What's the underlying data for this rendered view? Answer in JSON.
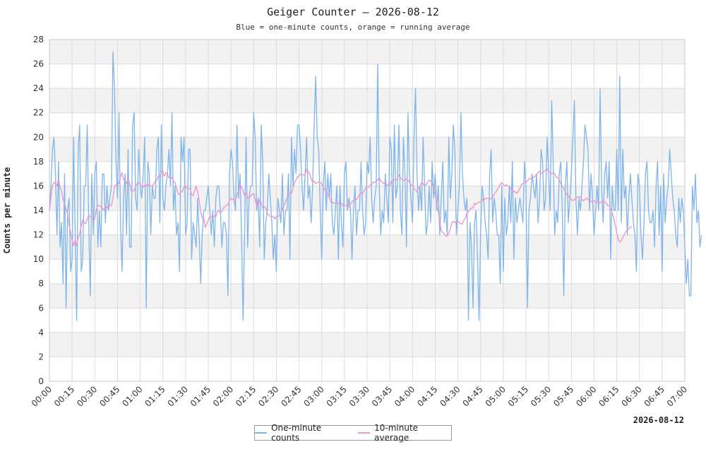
{
  "chart_data": {
    "type": "line",
    "title": "Geiger Counter – 2026-08-12",
    "subtitle": "Blue = one-minute counts, orange = running average",
    "ylabel": "Counts per minute",
    "xlabel_date": "2026-08-12",
    "ylim": [
      0,
      28
    ],
    "yticks": [
      0,
      2,
      4,
      6,
      8,
      10,
      12,
      14,
      16,
      18,
      20,
      22,
      24,
      26,
      28
    ],
    "x_range_minutes": [
      0,
      420
    ],
    "x_ticks": [
      "00:00",
      "00:15",
      "00:30",
      "00:45",
      "01:00",
      "01:15",
      "01:30",
      "01:45",
      "02:00",
      "02:15",
      "02:30",
      "02:45",
      "03:00",
      "03:15",
      "03:30",
      "03:45",
      "04:00",
      "04:15",
      "04:30",
      "04:45",
      "05:00",
      "05:15",
      "05:30",
      "05:45",
      "06:00",
      "06:15",
      "06:30",
      "06:45",
      "07:00"
    ],
    "grid": true,
    "legend_position": "bottom-center",
    "series": [
      {
        "name": "One-minute counts",
        "color": "#7fb4ea",
        "x_start": "00:00",
        "x_step_minutes": 1,
        "values": [
          14,
          16,
          19,
          20,
          17,
          12,
          18,
          11,
          13,
          8,
          17,
          6,
          14,
          15,
          9,
          10,
          20,
          12,
          5,
          19,
          21,
          9,
          10,
          16,
          16,
          21,
          13,
          7,
          17,
          12,
          17,
          18,
          11,
          14,
          11,
          17,
          17,
          13,
          16,
          14,
          15,
          16,
          27,
          24,
          18,
          15,
          22,
          13,
          9,
          15,
          17,
          12,
          19,
          11,
          11,
          21,
          22,
          15,
          14,
          19,
          16,
          15,
          17,
          20,
          6,
          18,
          17,
          12,
          16,
          15,
          15,
          19,
          20,
          13,
          21,
          15,
          14,
          16,
          17,
          19,
          16,
          22,
          14,
          16,
          12,
          13,
          9,
          20,
          18,
          20,
          12,
          13,
          19,
          19,
          10,
          13,
          12,
          11,
          15,
          12,
          8,
          12,
          14,
          14,
          15,
          16,
          14,
          12,
          14,
          11,
          15,
          16,
          16,
          14,
          11,
          13,
          13,
          12,
          7,
          17,
          19,
          18,
          15,
          14,
          21,
          15,
          17,
          12,
          5,
          12,
          20,
          11,
          15,
          16,
          16,
          22,
          20,
          14,
          15,
          11,
          21,
          18,
          10,
          13,
          14,
          17,
          15,
          13,
          10,
          12,
          9,
          15,
          14,
          13,
          17,
          12,
          14,
          14,
          17,
          10,
          20,
          16,
          19,
          17,
          21,
          21,
          19,
          16,
          14,
          17,
          20,
          15,
          16,
          13,
          16,
          21,
          25,
          20,
          19,
          14,
          10,
          16,
          18,
          14,
          17,
          15,
          17,
          13,
          12,
          14,
          16,
          10,
          16,
          13,
          11,
          17,
          18,
          14,
          15,
          14,
          10,
          14,
          16,
          12,
          14,
          14,
          18,
          14,
          12,
          13,
          18,
          17,
          20,
          15,
          13,
          15,
          16,
          26,
          16,
          12,
          14,
          13,
          17,
          15,
          13,
          20,
          19,
          13,
          21,
          15,
          16,
          21,
          14,
          12,
          20,
          17,
          11,
          22,
          17,
          15,
          13,
          20,
          24,
          17,
          14,
          16,
          14,
          20,
          16,
          12,
          13,
          16,
          13,
          18,
          15,
          17,
          14,
          16,
          12,
          15,
          18,
          13,
          14,
          12,
          20,
          15,
          17,
          21,
          19,
          12,
          14,
          16,
          22,
          17,
          15,
          14,
          15,
          5,
          13,
          11,
          6,
          13,
          14,
          10,
          5,
          12,
          16,
          15,
          13,
          12,
          10,
          17,
          19,
          13,
          15,
          14,
          12,
          12,
          8,
          16,
          9,
          15,
          12,
          13,
          16,
          13,
          18,
          10,
          15,
          13,
          14,
          15,
          14,
          13,
          18,
          16,
          6,
          14,
          15,
          17,
          16,
          15,
          17,
          13,
          15,
          19,
          18,
          14,
          15,
          20,
          17,
          14,
          23,
          18,
          12,
          14,
          13,
          17,
          18,
          14,
          7,
          16,
          18,
          13,
          15,
          17,
          20,
          23,
          15,
          12,
          15,
          14,
          16,
          18,
          21,
          20,
          19,
          14,
          17,
          15,
          12,
          14,
          16,
          14,
          24,
          16,
          13,
          17,
          18,
          15,
          18,
          10,
          16,
          14,
          14,
          19,
          14,
          25,
          13,
          19,
          15,
          16,
          12,
          15,
          17,
          15,
          13,
          12,
          9,
          17,
          16,
          12,
          10,
          13,
          17,
          18,
          14,
          13,
          13,
          14,
          11,
          16,
          18,
          12,
          16,
          9,
          17,
          13,
          15,
          16,
          19,
          17,
          15,
          14,
          12,
          11,
          15,
          13,
          15,
          14,
          11,
          8,
          10,
          7,
          7,
          16,
          14,
          17,
          13,
          14,
          11,
          12
        ]
      },
      {
        "name": "10-minute average",
        "color": "#e899cf",
        "x_start": "00:00",
        "x_step_minutes": 1,
        "values": [
          14.0,
          15.0,
          16.0,
          16.3,
          16.2,
          16.0,
          16.6,
          15.9,
          15.6,
          14.9,
          14.6,
          14.1,
          13.7,
          12.8,
          12.2,
          11.5,
          11.1,
          11.6,
          11.1,
          11.8,
          12.1,
          12.7,
          13.2,
          13.0,
          12.9,
          13.3,
          13.6,
          13.5,
          13.3,
          13.2,
          13.3,
          14.1,
          14.4,
          14.4,
          14.3,
          14.2,
          14.0,
          14.3,
          14.2,
          14.4,
          14.4,
          14.4,
          15.0,
          16.0,
          16.1,
          16.0,
          16.3,
          16.8,
          17.1,
          16.5,
          16.5,
          16.2,
          16.6,
          16.2,
          15.6,
          15.6,
          15.6,
          16.0,
          16.2,
          16.3,
          16.1,
          16.0,
          15.9,
          16.1,
          16.0,
          16.2,
          16.0,
          16.0,
          16.0,
          16.2,
          16.4,
          16.5,
          16.8,
          16.8,
          17.2,
          17.2,
          16.8,
          17.1,
          17.0,
          16.7,
          16.6,
          16.7,
          16.4,
          16.3,
          15.8,
          15.4,
          15.3,
          15.5,
          15.6,
          15.9,
          16.0,
          15.8,
          15.8,
          15.8,
          15.3,
          15.2,
          15.6,
          16.0,
          15.5,
          14.8,
          13.9,
          13.4,
          13.4,
          12.6,
          12.9,
          13.2,
          13.5,
          13.5,
          13.6,
          13.5,
          13.5,
          13.9,
          14.0,
          13.8,
          13.9,
          14.2,
          14.3,
          14.4,
          14.5,
          14.8,
          15.0,
          14.9,
          14.9,
          14.8,
          15.3,
          15.6,
          16.1,
          15.9,
          15.6,
          15.2,
          15.4,
          15.1,
          15.0,
          15.2,
          15.3,
          15.4,
          14.9,
          14.4,
          14.4,
          14.9,
          14.6,
          14.2,
          14.3,
          14.2,
          13.8,
          13.6,
          13.5,
          13.5,
          13.5,
          13.3,
          13.5,
          13.5,
          13.6,
          13.7,
          14.2,
          14.4,
          14.7,
          15.0,
          15.2,
          15.4,
          15.4,
          15.8,
          16.3,
          16.5,
          16.8,
          16.8,
          17.0,
          16.9,
          16.9,
          16.9,
          17.4,
          17.2,
          17.0,
          16.6,
          16.3,
          16.4,
          16.2,
          16.3,
          16.3,
          16.3,
          16.2,
          15.9,
          15.7,
          15.5,
          15.3,
          15.1,
          14.7,
          14.7,
          14.6,
          14.6,
          14.6,
          14.6,
          14.5,
          14.6,
          14.4,
          14.4,
          14.4,
          14.4,
          14.3,
          14.5,
          14.7,
          14.8,
          15.0,
          14.9,
          15.1,
          15.3,
          15.4,
          15.4,
          15.6,
          15.8,
          15.9,
          15.9,
          16.1,
          16.1,
          16.3,
          16.3,
          16.4,
          16.5,
          16.7,
          16.4,
          16.3,
          16.2,
          16.3,
          16.1,
          16.0,
          16.0,
          16.4,
          16.4,
          16.5,
          16.5,
          16.6,
          16.9,
          16.7,
          16.5,
          16.5,
          16.4,
          16.6,
          16.5,
          16.3,
          16.1,
          16.0,
          15.8,
          15.7,
          15.5,
          15.8,
          16.0,
          16.3,
          16.2,
          16.0,
          16.1,
          16.3,
          16.5,
          16.4,
          16.2,
          15.8,
          15.4,
          14.6,
          13.9,
          13.1,
          12.3,
          12.2,
          12.1,
          11.9,
          11.9,
          12.1,
          12.5,
          13.0,
          13.1,
          13.0,
          13.1,
          13.1,
          13.0,
          12.9,
          12.9,
          13.2,
          13.4,
          13.8,
          13.9,
          14.1,
          14.2,
          14.2,
          14.6,
          14.5,
          14.6,
          14.7,
          14.7,
          14.8,
          15.0,
          14.9,
          15.0,
          15.0,
          14.9,
          15.0,
          15.1,
          15.3,
          15.5,
          15.7,
          15.9,
          16.1,
          16.3,
          16.1,
          16.0,
          16.1,
          16.0,
          16.0,
          15.8,
          15.5,
          15.6,
          15.5,
          15.4,
          15.6,
          15.8,
          16.1,
          16.2,
          16.3,
          16.4,
          16.4,
          16.6,
          16.6,
          16.6,
          16.7,
          16.8,
          17.0,
          17.1,
          17.2,
          17.0,
          17.1,
          17.2,
          17.3,
          17.4,
          17.2,
          17.1,
          17.0,
          17.1,
          17.0,
          16.7,
          16.7,
          16.5,
          16.2,
          16.0,
          15.8,
          15.5,
          15.3,
          15.2,
          15.0,
          14.9,
          14.8,
          14.9,
          15.0,
          15.1,
          15.1,
          15.1,
          14.9,
          14.8,
          14.9,
          15.0,
          14.9,
          14.8,
          14.7,
          14.8,
          14.8,
          14.7,
          14.7,
          14.7,
          14.6,
          14.7,
          14.8,
          14.7,
          14.6,
          14.4,
          14.4,
          14.1,
          13.8,
          13.4,
          12.8,
          12.2,
          11.6,
          11.4,
          11.5,
          11.8,
          12.0,
          12.3,
          12.4,
          12.5,
          12.6,
          12.7
        ]
      }
    ]
  }
}
